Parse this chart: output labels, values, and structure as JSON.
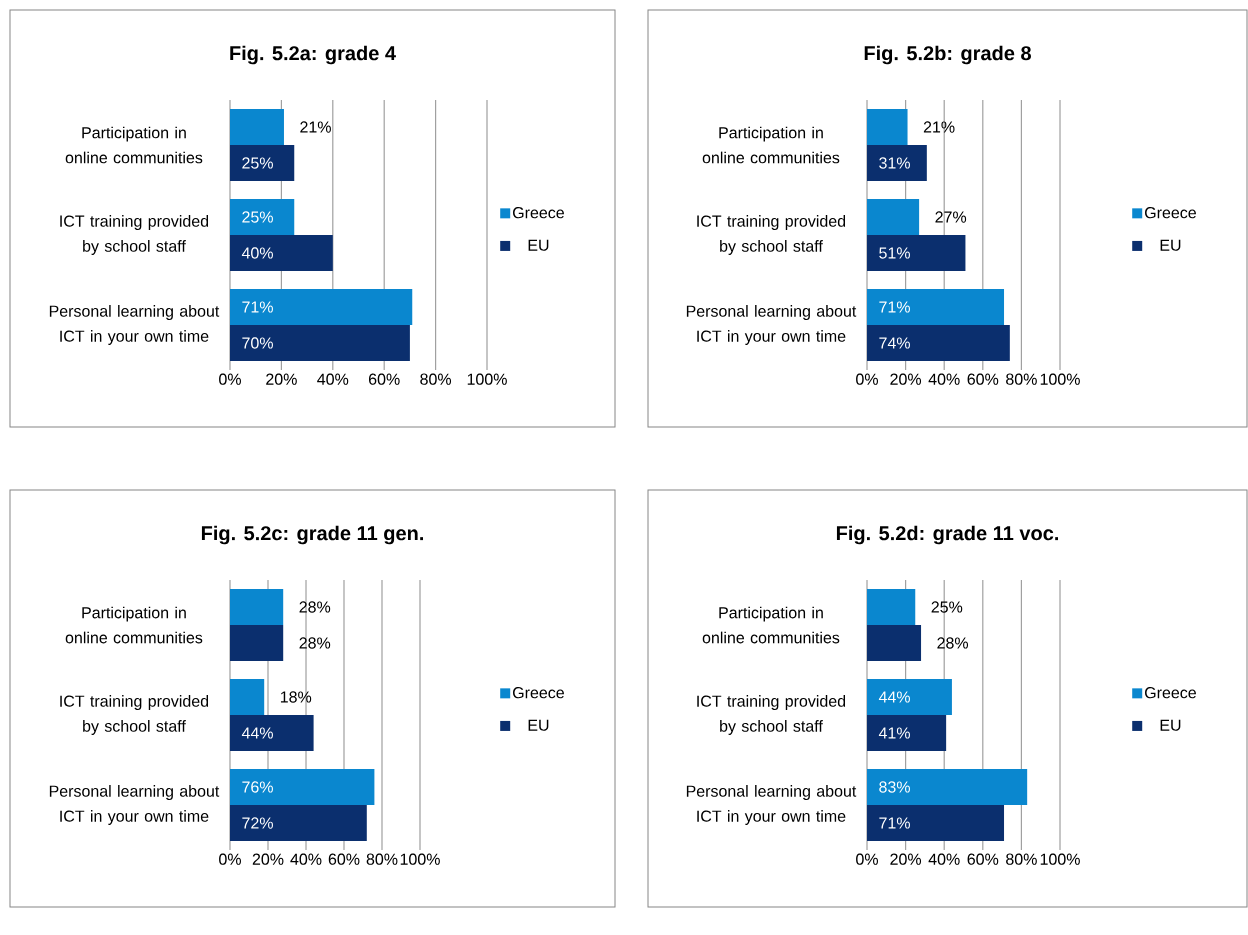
{
  "chart_data": [
    {
      "type": "bar",
      "orientation": "horizontal",
      "title": "Fig. 5.2a: grade 4",
      "categories": [
        "Participation in online communities",
        "ICT training provided by school staff",
        "Personal learning about ICT in your own time"
      ],
      "series": [
        {
          "name": "Greece",
          "color": "#0a87cf",
          "values": [
            21,
            25,
            71
          ],
          "value_labels": [
            "21%",
            "25%",
            "71%"
          ]
        },
        {
          "name": "EU",
          "color": "#0b2f6e",
          "values": [
            25,
            40,
            70
          ],
          "value_labels": [
            "25%",
            "40%",
            "70%"
          ]
        }
      ],
      "xlim": [
        0,
        100
      ],
      "xticks": [
        {
          "value": 0,
          "label": "0%"
        },
        {
          "value": 20,
          "label": "20%"
        },
        {
          "value": 40,
          "label": "40%"
        },
        {
          "value": 60,
          "label": "60%"
        },
        {
          "value": 80,
          "label": "80%"
        },
        {
          "value": 100,
          "label": "100%"
        }
      ],
      "grid": "x",
      "legend": "right"
    },
    {
      "type": "bar",
      "orientation": "horizontal",
      "title": "Fig. 5.2b: grade 8",
      "categories": [
        "Participation in online communities",
        "ICT training provided by school staff",
        "Personal learning about ICT in your own time"
      ],
      "series": [
        {
          "name": "Greece",
          "color": "#0a87cf",
          "values": [
            21,
            27,
            71
          ],
          "value_labels": [
            "21%",
            "27%",
            "71%"
          ]
        },
        {
          "name": "EU",
          "color": "#0b2f6e",
          "values": [
            31,
            51,
            74
          ],
          "value_labels": [
            "31%",
            "51%",
            "74%"
          ]
        }
      ],
      "xlim": [
        0,
        100
      ],
      "xticks": [
        {
          "value": 0,
          "label": "0%"
        },
        {
          "value": 20,
          "label": "20%"
        },
        {
          "value": 40,
          "label": "40%"
        },
        {
          "value": 60,
          "label": "60%"
        },
        {
          "value": 80,
          "label": "80%"
        },
        {
          "value": 100,
          "label": "100%"
        }
      ],
      "grid": "x",
      "legend": "right"
    },
    {
      "type": "bar",
      "orientation": "horizontal",
      "title": "Fig. 5.2c: grade 11 gen.",
      "categories": [
        "Participation in online communities",
        "ICT training provided by school staff",
        "Personal learning about ICT in your own time"
      ],
      "series": [
        {
          "name": "Greece",
          "color": "#0a87cf",
          "values": [
            28,
            18,
            76
          ],
          "value_labels": [
            "28%",
            "18%",
            "76%"
          ]
        },
        {
          "name": "EU",
          "color": "#0b2f6e",
          "values": [
            28,
            44,
            72
          ],
          "value_labels": [
            "28%",
            "44%",
            "72%"
          ]
        }
      ],
      "xlim": [
        0,
        100
      ],
      "xticks": [
        {
          "value": 0,
          "label": "0%"
        },
        {
          "value": 20,
          "label": "20%"
        },
        {
          "value": 40,
          "label": "40%"
        },
        {
          "value": 60,
          "label": "60%"
        },
        {
          "value": 80,
          "label": "80%"
        },
        {
          "value": 100,
          "label": "100%"
        }
      ],
      "grid": "x",
      "legend": "right"
    },
    {
      "type": "bar",
      "orientation": "horizontal",
      "title": "Fig. 5.2d: grade 11 voc.",
      "categories": [
        "Participation in online communities",
        "ICT training provided by school staff",
        "Personal learning about ICT in your own time"
      ],
      "series": [
        {
          "name": "Greece",
          "color": "#0a87cf",
          "values": [
            25,
            44,
            83
          ],
          "value_labels": [
            "25%",
            "44%",
            "83%"
          ]
        },
        {
          "name": "EU",
          "color": "#0b2f6e",
          "values": [
            28,
            41,
            71
          ],
          "value_labels": [
            "28%",
            "41%",
            "71%"
          ]
        }
      ],
      "xlim": [
        0,
        100
      ],
      "xticks": [
        {
          "value": 0,
          "label": "0%"
        },
        {
          "value": 20,
          "label": "20%"
        },
        {
          "value": 40,
          "label": "40%"
        },
        {
          "value": 60,
          "label": "60%"
        },
        {
          "value": 80,
          "label": "80%"
        },
        {
          "value": 100,
          "label": "100%"
        }
      ],
      "grid": "x",
      "legend": "right"
    }
  ]
}
